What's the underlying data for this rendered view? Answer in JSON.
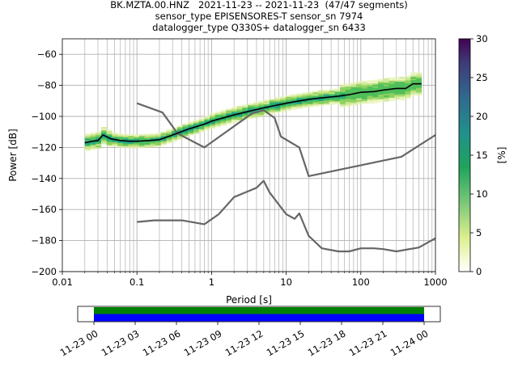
{
  "title_lines": [
    "BK.MZTA.00.HNZ   2021-11-23 -- 2021-11-23  (47/47 segments)",
    "sensor_type EPISENSORES-T sensor_sn 7974",
    "datalogger_type Q330S+ datalogger_sn 6433"
  ],
  "chart_data": [
    {
      "type": "heatmap",
      "xlabel": "Period [s]",
      "ylabel": "Power [dB]",
      "xscale": "log",
      "xlim": [
        0.01,
        1000
      ],
      "ylim": [
        -200,
        -50
      ],
      "x_ticks": [
        "0.01",
        "0.1",
        "1",
        "10",
        "100",
        "1000"
      ],
      "x_tick_values": [
        0.01,
        0.1,
        1,
        10,
        100,
        1000
      ],
      "y_ticks": [
        "−200",
        "−180",
        "−160",
        "−140",
        "−120",
        "−100",
        "−80",
        "−60"
      ],
      "y_tick_values": [
        -200,
        -180,
        -160,
        -140,
        -120,
        -100,
        -80,
        -60
      ],
      "grid": true,
      "colorbar": {
        "label": "[%]",
        "range": [
          0,
          30
        ],
        "ticks": [
          "0",
          "5",
          "10",
          "15",
          "20",
          "25",
          "30"
        ],
        "tick_values": [
          0,
          5,
          10,
          15,
          20,
          25,
          30
        ]
      },
      "mean_curve": {
        "x": [
          0.02,
          0.025,
          0.03,
          0.035,
          0.045,
          0.06,
          0.08,
          0.1,
          0.15,
          0.2,
          0.3,
          0.5,
          0.8,
          1,
          2,
          3,
          5,
          7,
          10,
          15,
          20,
          30,
          50,
          70,
          100,
          150,
          200,
          300,
          400,
          500,
          650
        ],
        "y": [
          -117,
          -116,
          -115.5,
          -112,
          -114.5,
          -115.5,
          -116,
          -116,
          -115.5,
          -115,
          -112,
          -108,
          -105,
          -103,
          -99,
          -97,
          -94.5,
          -93,
          -91.5,
          -90,
          -89,
          -88,
          -87,
          -86,
          -84.5,
          -84,
          -83,
          -82,
          -82,
          -79,
          -79
        ]
      },
      "noise_model_upper": {
        "x": [
          0.1,
          0.22,
          0.35,
          0.8,
          3.5,
          5,
          7,
          8.5,
          15,
          20,
          350,
          1000
        ],
        "y": [
          -91.5,
          -97.5,
          -111,
          -120,
          -98,
          -96,
          -101,
          -113,
          -120,
          -138.5,
          -126,
          -112
        ]
      },
      "noise_model_lower": {
        "x": [
          0.1,
          0.17,
          0.4,
          0.8,
          1.25,
          2,
          3,
          4,
          5,
          6,
          10,
          13,
          15,
          20,
          30,
          50,
          70,
          100,
          150,
          200,
          300,
          600,
          1000
        ],
        "y": [
          -168,
          -167,
          -167,
          -169.5,
          -163,
          -152,
          -148.5,
          -146,
          -141.5,
          -149,
          -163,
          -166,
          -162.5,
          -177,
          -185,
          -187,
          -187,
          -185,
          -185,
          -185.5,
          -187,
          -184.5,
          -178.5
        ]
      }
    },
    {
      "type": "timeline",
      "x_ticks": [
        "11-23 00",
        "11-23 03",
        "11-23 06",
        "11-23 09",
        "11-23 12",
        "11-23 15",
        "11-23 18",
        "11-23 21",
        "11-24 00"
      ],
      "segments_start": "11-23 00",
      "segments_end": "11-24 00",
      "colors": {
        "top": "#008000",
        "bottom": "#0000ff"
      }
    }
  ],
  "colors": {
    "mean": "#000000",
    "noise_model": "#666666",
    "grid": "#b0b0b0",
    "heat_low": "#ffffe5",
    "heat_mid": "#5fc048",
    "heat_high": "#440154"
  }
}
